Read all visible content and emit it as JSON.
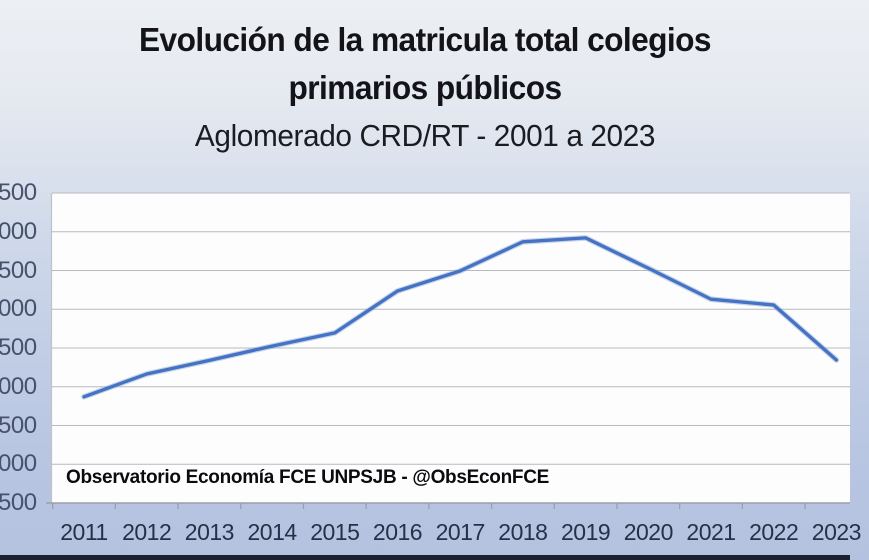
{
  "title": {
    "line1": "Evolución de la matricula total colegios",
    "line2": "primarios públicos",
    "line3": "Aglomerado CRD/RT - 2001 a 2023"
  },
  "source_label": "Observatorio Economía FCE UNPSJB - @ObsEconFCE",
  "chart_data": {
    "type": "line",
    "title": "Evolución de la matricula total colegios primarios públicos",
    "subtitle": "Aglomerado CRD/RT - 2001 a 2023",
    "categories": [
      "2011",
      "2012",
      "2013",
      "2014",
      "2015",
      "2016",
      "2017",
      "2018",
      "2019",
      "2020",
      "2021",
      "2022",
      "2023"
    ],
    "values": [
      1370,
      1665,
      1840,
      2025,
      2195,
      2735,
      2995,
      3370,
      3420,
      3030,
      2630,
      2555,
      1845
    ],
    "y_axis": {
      "tick_labels_top_to_bottom": [
        "500",
        "000",
        "500",
        "000",
        "500",
        "000",
        "500",
        "000",
        "500"
      ],
      "tick_step": 500,
      "relative_range": [
        0,
        4000
      ],
      "labels_cut_off_at_left_edge": true
    },
    "grid": true,
    "legend": false,
    "line_color": "#4472c4",
    "line_halo_color": "#93accf",
    "gridline_color": "#b7babf",
    "axis_line_color": "#9aa0a8",
    "plot_border_color": "#bfc3c9",
    "plot_background": "#fdfdfe",
    "source": "Observatorio Economía FCE UNPSJB - @ObsEconFCE"
  },
  "colors": {
    "background_top": "#eceff3",
    "background_bottom": "#b4c2e0",
    "footer_bar": "#1c2130",
    "title_text": "#131318",
    "x_label_text": "#243247",
    "y_label_text": "#46516b"
  }
}
